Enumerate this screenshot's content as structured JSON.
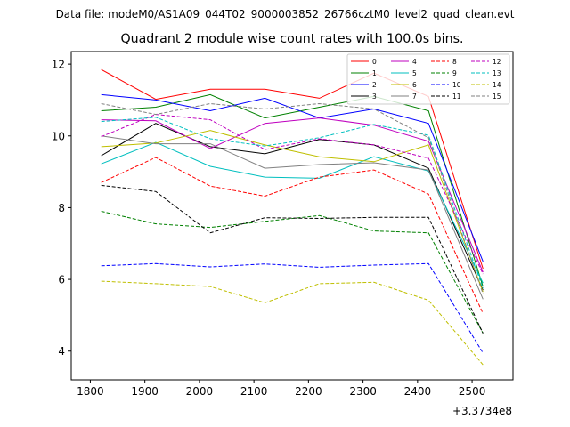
{
  "suptitle": "Data file: modeM0/AS1A09_044T02_9000003852_26766cztM0_level2_quad_clean.evt",
  "chart_data": {
    "type": "line",
    "title": "Quadrant 2 module wise count rates with 100.0s bins.",
    "xlabel": "",
    "ylabel": "",
    "x_offset_label": "+3.3734e8",
    "x": [
      1820,
      1920,
      2020,
      2120,
      2220,
      2320,
      2420,
      2520
    ],
    "xlim": [
      1765,
      2575
    ],
    "ylim": [
      3.2,
      12.35
    ],
    "xticks": [
      1800,
      1900,
      2000,
      2100,
      2200,
      2300,
      2400,
      2500
    ],
    "yticks": [
      4,
      6,
      8,
      10,
      12
    ],
    "grid": false,
    "legend_position": "top-right",
    "series": [
      {
        "name": "0",
        "color": "#ff0000",
        "dash": "solid",
        "values": [
          11.85,
          11.02,
          11.3,
          11.3,
          11.05,
          11.75,
          11.1,
          6.3
        ]
      },
      {
        "name": "1",
        "color": "#008000",
        "dash": "solid",
        "values": [
          10.7,
          10.8,
          11.15,
          10.5,
          10.8,
          11.1,
          10.7,
          5.8
        ]
      },
      {
        "name": "2",
        "color": "#0000ff",
        "dash": "solid",
        "values": [
          11.15,
          11.0,
          10.7,
          11.05,
          10.5,
          10.75,
          10.35,
          6.5
        ]
      },
      {
        "name": "3",
        "color": "#000000",
        "dash": "solid",
        "values": [
          9.45,
          10.35,
          9.7,
          9.5,
          9.9,
          9.75,
          9.1,
          5.7
        ]
      },
      {
        "name": "4",
        "color": "#bf00bf",
        "dash": "solid",
        "values": [
          10.45,
          10.42,
          9.65,
          10.35,
          10.5,
          10.3,
          9.85,
          6.2
        ]
      },
      {
        "name": "5",
        "color": "#00bfbf",
        "dash": "solid",
        "values": [
          9.22,
          9.82,
          9.15,
          8.85,
          8.82,
          9.42,
          9.02,
          5.9
        ]
      },
      {
        "name": "6",
        "color": "#bfbf00",
        "dash": "solid",
        "values": [
          9.7,
          9.8,
          10.15,
          9.75,
          9.42,
          9.28,
          9.75,
          5.65
        ]
      },
      {
        "name": "7",
        "color": "#808080",
        "dash": "solid",
        "values": [
          10.0,
          9.78,
          9.78,
          9.1,
          9.2,
          9.25,
          9.05,
          5.45
        ]
      },
      {
        "name": "8",
        "color": "#ff0000",
        "dash": "dashed",
        "values": [
          8.7,
          9.4,
          8.6,
          8.32,
          8.85,
          9.05,
          8.38,
          5.05
        ]
      },
      {
        "name": "9",
        "color": "#008000",
        "dash": "dashed",
        "values": [
          7.9,
          7.55,
          7.45,
          7.62,
          7.78,
          7.35,
          7.3,
          4.5
        ]
      },
      {
        "name": "10",
        "color": "#0000ff",
        "dash": "dashed",
        "values": [
          6.38,
          6.44,
          6.35,
          6.43,
          6.34,
          6.4,
          6.44,
          3.95
        ]
      },
      {
        "name": "11",
        "color": "#000000",
        "dash": "dashed",
        "values": [
          8.62,
          8.45,
          7.3,
          7.72,
          7.7,
          7.73,
          7.73,
          4.5
        ]
      },
      {
        "name": "12",
        "color": "#bf00bf",
        "dash": "dashed",
        "values": [
          9.98,
          10.6,
          10.45,
          9.62,
          9.92,
          9.75,
          9.38,
          6.15
        ]
      },
      {
        "name": "13",
        "color": "#00bfbf",
        "dash": "dashed",
        "values": [
          10.4,
          10.52,
          9.92,
          9.72,
          9.95,
          10.32,
          10.02,
          5.75
        ]
      },
      {
        "name": "14",
        "color": "#bfbf00",
        "dash": "dashed",
        "values": [
          5.95,
          5.88,
          5.8,
          5.35,
          5.88,
          5.92,
          5.42,
          3.62
        ]
      },
      {
        "name": "15",
        "color": "#808080",
        "dash": "dashed",
        "values": [
          10.9,
          10.6,
          10.9,
          10.75,
          10.9,
          10.75,
          9.95,
          5.6
        ]
      }
    ]
  }
}
